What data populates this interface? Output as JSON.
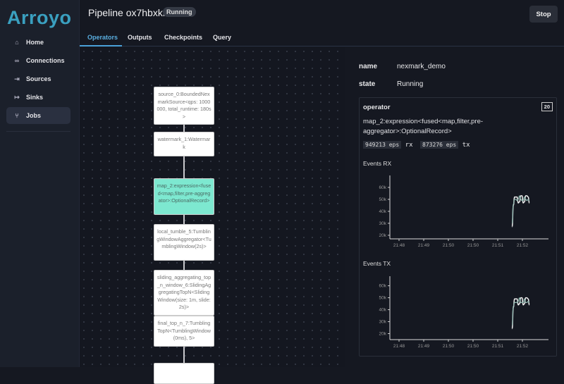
{
  "app": {
    "logo": "Arroyo"
  },
  "sidebar": {
    "items": [
      {
        "label": "Home",
        "icon": "home-icon",
        "glyph": "⌂"
      },
      {
        "label": "Connections",
        "icon": "link-icon",
        "glyph": "∞"
      },
      {
        "label": "Sources",
        "icon": "sign-in-icon",
        "glyph": "⇥"
      },
      {
        "label": "Sinks",
        "icon": "sign-out-icon",
        "glyph": "↦"
      },
      {
        "label": "Jobs",
        "icon": "git-branch-icon",
        "glyph": "⑂",
        "active": true
      }
    ]
  },
  "header": {
    "title": "Pipeline ox7hbxkn",
    "status": "Running",
    "stop_label": "Stop"
  },
  "tabs": [
    {
      "label": "Operators",
      "active": true
    },
    {
      "label": "Outputs"
    },
    {
      "label": "Checkpoints"
    },
    {
      "label": "Query"
    }
  ],
  "graph": {
    "nodes": [
      {
        "label": "source_0:BoundedNexmarkSource<qps: 1000000, total_runtime: 180s>"
      },
      {
        "label": "watermark_1:Watermark"
      },
      {
        "label": "map_2:expression<fused<map,filter,pre-aggregator>:OptionalRecord>",
        "selected": true
      },
      {
        "label": "local_tumble_5:TumblingWindowAggregator<TumblingWindow(2s)>"
      },
      {
        "label": "sliding_aggregating_top_n_window_6:SlidingAggregatingTopN<SlidingWindow(size: 1m, slide: 2s)>"
      },
      {
        "label": "final_top_n_7:TumblingTopN<TumblingWindow(0ms), 5>"
      },
      {
        "label": ""
      }
    ]
  },
  "details": {
    "name_label": "name",
    "name_value": "nexmark_demo",
    "state_label": "state",
    "state_value": "Running"
  },
  "operator": {
    "heading": "operator",
    "parallelism": "20",
    "name": "map_2:expression<fused<map,filter,pre-aggregator>:OptionalRecord>",
    "rx_value": "949213 eps",
    "rx_label": "rx",
    "tx_value": "873276 eps",
    "tx_label": "tx"
  },
  "chart_data": [
    {
      "type": "line",
      "title": "Events RX",
      "x_ticks": [
        "21:48",
        "21:49",
        "21:50",
        "21:50",
        "21:51",
        "21:52"
      ],
      "y_ticks": [
        "20k",
        "30k",
        "40k",
        "50k",
        "60k"
      ],
      "ylim": [
        17000,
        70000
      ],
      "colors": [
        "#f0f0f0",
        "#8fb8b0"
      ],
      "x": [
        "21:51:35",
        "21:51:38",
        "21:51:41",
        "21:51:44",
        "21:51:47",
        "21:51:50",
        "21:51:53",
        "21:51:56",
        "21:51:59",
        "21:52:02",
        "21:52:05",
        "21:52:08",
        "21:52:11",
        "21:52:14",
        "21:52:17"
      ],
      "series": [
        {
          "values": [
            27000,
            45000,
            52000,
            52000,
            52000,
            47000,
            48000,
            53000,
            53000,
            47000,
            48000,
            53000,
            53000,
            52000,
            47000
          ]
        },
        {
          "values": [
            30000,
            46000,
            50000,
            50000,
            49000,
            50000,
            53000,
            50000,
            49000,
            49000,
            52000,
            50000,
            49000,
            50000,
            49000
          ]
        }
      ]
    },
    {
      "type": "line",
      "title": "Events TX",
      "x_ticks": [
        "21:48",
        "21:49",
        "21:50",
        "21:50",
        "21:51",
        "21:52"
      ],
      "y_ticks": [
        "20k",
        "30k",
        "40k",
        "50k",
        "60k"
      ],
      "ylim": [
        15000,
        68000
      ],
      "colors": [
        "#f0f0f0",
        "#8fb8b0"
      ],
      "x": [
        "21:51:35",
        "21:51:38",
        "21:51:41",
        "21:51:44",
        "21:51:47",
        "21:51:50",
        "21:51:53",
        "21:51:56",
        "21:51:59",
        "21:52:02",
        "21:52:05",
        "21:52:08",
        "21:52:11",
        "21:52:14",
        "21:52:17"
      ],
      "series": [
        {
          "values": [
            24000,
            42000,
            49000,
            49000,
            49000,
            44000,
            45000,
            50000,
            50000,
            44000,
            45000,
            50000,
            50000,
            49000,
            44000
          ]
        },
        {
          "values": [
            27000,
            43000,
            46000,
            46000,
            46000,
            47000,
            50000,
            46000,
            46000,
            46000,
            49000,
            46000,
            46000,
            47000,
            46000
          ]
        }
      ]
    }
  ]
}
